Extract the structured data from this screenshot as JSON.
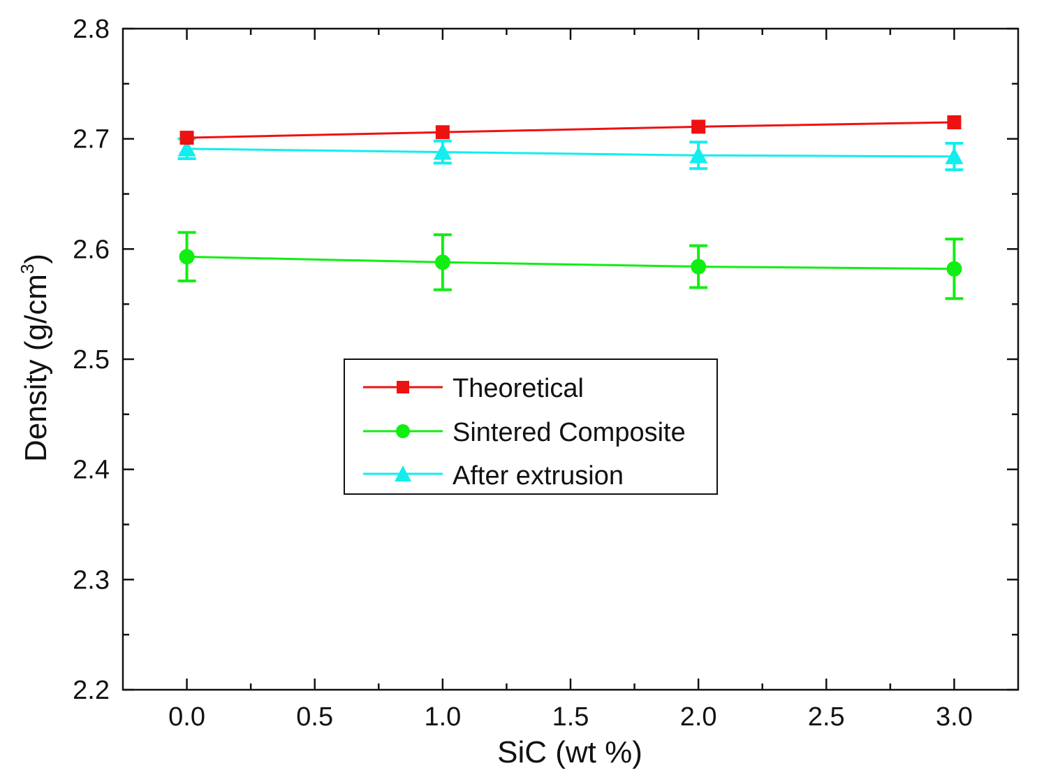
{
  "chart_data": {
    "type": "line",
    "title": "",
    "xlabel": "SiC (wt %)",
    "ylabel_main": "Density (g/cm",
    "ylabel_sup": "3",
    "ylabel_close": ")",
    "xlim": [
      -0.25,
      3.25
    ],
    "ylim": [
      2.2,
      2.8
    ],
    "xticks": [
      "0.0",
      "0.5",
      "1.0",
      "1.5",
      "2.0",
      "2.5",
      "3.0"
    ],
    "xtick_values": [
      0,
      0.5,
      1.0,
      1.5,
      2.0,
      2.5,
      3.0
    ],
    "yticks": [
      "2.2",
      "2.3",
      "2.4",
      "2.5",
      "2.6",
      "2.7",
      "2.8"
    ],
    "ytick_values": [
      2.2,
      2.3,
      2.4,
      2.5,
      2.6,
      2.7,
      2.8
    ],
    "x": [
      0,
      1,
      2,
      3
    ],
    "series": [
      {
        "name": "Theoretical",
        "color": "#ee1111",
        "marker": "square",
        "values": [
          2.701,
          2.706,
          2.711,
          2.715
        ],
        "errors": null
      },
      {
        "name": "Sintered Composite",
        "color": "#11ee11",
        "marker": "circle",
        "values": [
          2.593,
          2.588,
          2.584,
          2.582
        ],
        "errors": [
          0.022,
          0.025,
          0.019,
          0.027
        ]
      },
      {
        "name": "After extrusion",
        "color": "#11eeee",
        "marker": "triangle",
        "values": [
          2.691,
          2.688,
          2.685,
          2.684
        ],
        "errors": [
          0.009,
          0.01,
          0.012,
          0.012
        ]
      }
    ],
    "legend_position": "center"
  }
}
